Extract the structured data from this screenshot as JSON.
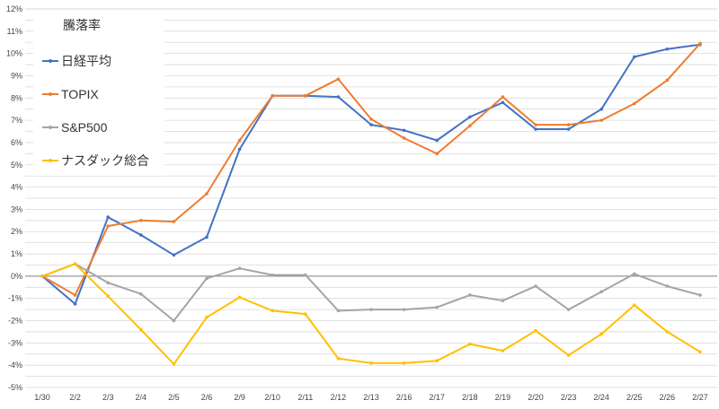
{
  "chart_data": {
    "type": "line",
    "title": "",
    "xlabel": "",
    "ylabel": "",
    "ylim": [
      -5,
      12
    ],
    "y_tick_step": 0.5,
    "y_tick_label_step": 1,
    "y_tick_format": "percent-integer",
    "grid": true,
    "legend": {
      "title": "騰落率",
      "placement": "top-left"
    },
    "categories": [
      "1/30",
      "2/2",
      "2/3",
      "2/4",
      "2/5",
      "2/6",
      "2/9",
      "2/10",
      "2/11",
      "2/12",
      "2/13",
      "2/16",
      "2/17",
      "2/18",
      "2/19",
      "2/20",
      "2/23",
      "2/24",
      "2/25",
      "2/26",
      "2/27"
    ],
    "series": [
      {
        "name": "日経平均",
        "color": "#4472c4",
        "values": [
          0,
          -1.25,
          2.65,
          1.85,
          0.95,
          1.75,
          5.7,
          8.1,
          8.1,
          8.05,
          6.8,
          6.55,
          6.1,
          7.15,
          7.8,
          6.6,
          6.6,
          7.5,
          9.85,
          10.2,
          10.4
        ]
      },
      {
        "name": "TOPIX",
        "color": "#ed7d31",
        "values": [
          0,
          -0.85,
          2.25,
          2.5,
          2.45,
          3.7,
          6.1,
          8.1,
          8.1,
          8.85,
          7.05,
          6.2,
          5.5,
          6.75,
          8.05,
          6.8,
          6.8,
          7.0,
          7.75,
          8.8,
          10.45
        ]
      },
      {
        "name": "S&P500",
        "color": "#a5a5a5",
        "values": [
          0,
          0.55,
          -0.3,
          -0.8,
          -2.0,
          -0.1,
          0.35,
          0.05,
          0.05,
          -1.55,
          -1.5,
          -1.5,
          -1.4,
          -0.85,
          -1.1,
          -0.45,
          -1.5,
          -0.7,
          0.1,
          -0.45,
          -0.85
        ]
      },
      {
        "name": "ナスダック総合",
        "color": "#ffc000",
        "values": [
          0,
          0.55,
          -0.9,
          -2.4,
          -3.95,
          -1.85,
          -0.95,
          -1.55,
          -1.7,
          -3.7,
          -3.9,
          -3.9,
          -3.8,
          -3.05,
          -3.35,
          -2.45,
          -3.55,
          -2.6,
          -1.3,
          -2.5,
          -3.4
        ]
      }
    ]
  }
}
